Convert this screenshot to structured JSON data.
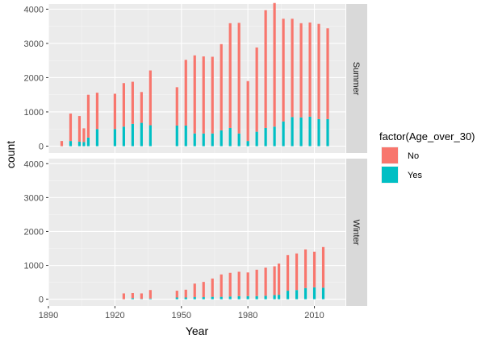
{
  "chart_data": {
    "type": "bar",
    "stacked": true,
    "xlabel": "Year",
    "ylabel": "count",
    "x_ticks": [
      1890,
      1920,
      1950,
      1980,
      2010
    ],
    "xlim": [
      1890,
      2024
    ],
    "y_ticks": [
      0,
      1000,
      2000,
      3000,
      4000
    ],
    "ylim": [
      -200,
      4150
    ],
    "grid": true,
    "legend": {
      "title": "factor(Age_over_30)",
      "placement": "right",
      "entries": [
        {
          "label": "No",
          "color": "#F8766D"
        },
        {
          "label": "Yes",
          "color": "#00BFC4"
        }
      ]
    },
    "panels": [
      {
        "label": "Summer",
        "x": [
          1896,
          1900,
          1904,
          1906,
          1908,
          1912,
          1920,
          1924,
          1928,
          1932,
          1936,
          1948,
          1952,
          1956,
          1960,
          1964,
          1968,
          1972,
          1976,
          1980,
          1984,
          1988,
          1992,
          1996,
          2000,
          2004,
          2008,
          2012,
          2016
        ],
        "series": [
          {
            "name": "No",
            "values": [
              150,
              800,
              750,
              400,
              1250,
              1060,
              1030,
              1270,
              1230,
              900,
              1600,
              1120,
              1920,
              2280,
              2250,
              2240,
              2520,
              3060,
              3230,
              1750,
              2460,
              3440,
              3610,
              3000,
              2870,
              2750,
              2750,
              2780,
              2650
            ]
          },
          {
            "name": "Yes",
            "values": [
              0,
              150,
              130,
              120,
              250,
              500,
              500,
              570,
              650,
              680,
              610,
              600,
              600,
              370,
              370,
              370,
              460,
              530,
              370,
              150,
              420,
              530,
              570,
              720,
              850,
              840,
              860,
              790,
              790
            ]
          }
        ]
      },
      {
        "label": "Winter",
        "x": [
          1924,
          1928,
          1932,
          1936,
          1948,
          1952,
          1956,
          1960,
          1964,
          1968,
          1972,
          1976,
          1980,
          1984,
          1988,
          1992,
          1994,
          1998,
          2002,
          2006,
          2010,
          2014
        ],
        "series": [
          {
            "name": "No",
            "values": [
              170,
              150,
              160,
              250,
              200,
              230,
              400,
              450,
              540,
              660,
              700,
              720,
              700,
              780,
              830,
              850,
              920,
              1050,
              1080,
              1140,
              1050,
              1200
            ]
          },
          {
            "name": "Yes",
            "values": [
              0,
              30,
              10,
              20,
              50,
              50,
              60,
              60,
              70,
              70,
              80,
              90,
              90,
              90,
              100,
              120,
              130,
              250,
              270,
              330,
              350,
              340
            ]
          }
        ]
      }
    ]
  }
}
